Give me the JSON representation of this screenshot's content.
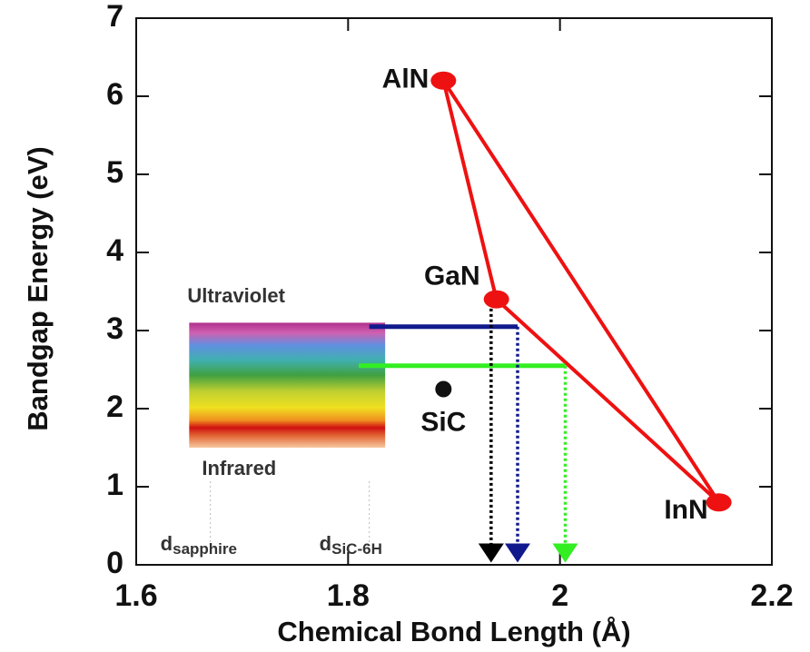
{
  "chart_data": {
    "type": "scatter",
    "x_label": "Chemical Bond Length (Å)",
    "y_label": "Bandgap Energy (eV)",
    "xlim": [
      1.6,
      2.2
    ],
    "ylim": [
      0,
      7
    ],
    "xticks": [
      1.6,
      1.8,
      2,
      2.2
    ],
    "yticks": [
      0,
      1,
      2,
      3,
      4,
      5,
      6,
      7
    ],
    "point_labels": [
      "AlN",
      "GaN",
      "InN"
    ],
    "x": [
      1.89,
      1.94,
      2.15
    ],
    "values": [
      6.2,
      3.4,
      0.8
    ],
    "color": "#ee1111",
    "extra_point": {
      "label": "SiC",
      "x": 1.89,
      "y": 2.25,
      "color": "#111111"
    },
    "horizontal_lines": [
      {
        "color": "#101a8c",
        "y": 3.05,
        "x": [
          1.82,
          1.96
        ]
      },
      {
        "color": "#33ee22",
        "y": 2.55,
        "x": [
          1.81,
          2.005
        ]
      }
    ],
    "arrows": [
      {
        "color": "#000000",
        "x": 1.935,
        "y": [
          3.35,
          0
        ]
      },
      {
        "color": "#101a8c",
        "x": 1.96,
        "y": [
          3.05,
          0
        ]
      },
      {
        "color": "#33ee22",
        "x": 2.005,
        "y": [
          2.55,
          0
        ]
      }
    ],
    "spectrum": {
      "top_label": "Ultraviolet",
      "bottom_label": "Infrared",
      "x": [
        1.65,
        1.835
      ],
      "y": [
        1.5,
        3.1
      ]
    },
    "references": [
      {
        "label": "d",
        "sub": "sapphire",
        "x": 1.67
      },
      {
        "label": "d",
        "sub": "SiC-6H",
        "x": 1.82
      }
    ]
  }
}
